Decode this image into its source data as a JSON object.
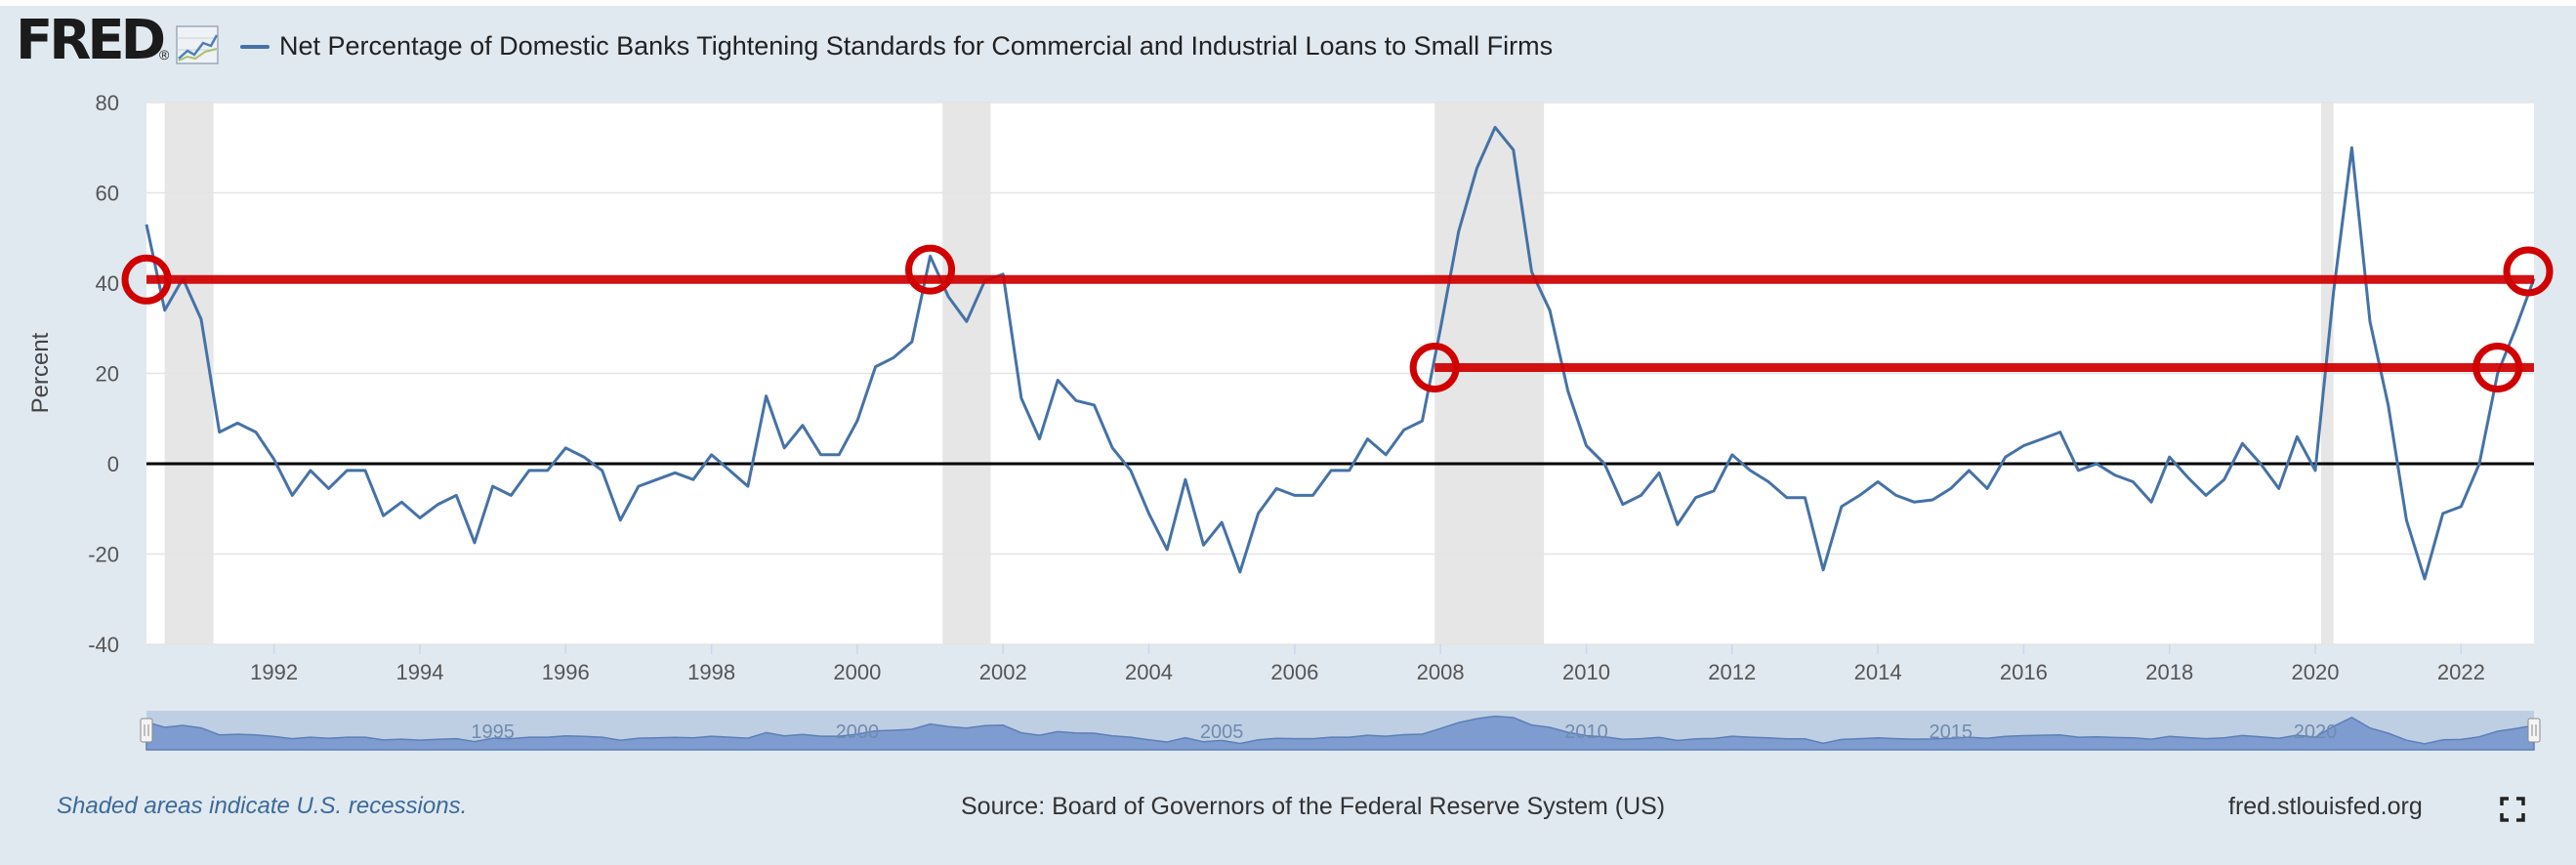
{
  "header": {
    "logo_text": "FRED",
    "logo_mark": "®",
    "logo_icon": "line-chart-icon"
  },
  "chart_data": {
    "type": "line",
    "title": "Net Percentage of Domestic Banks Tightening Standards for Commercial and Industrial Loans to Small Firms",
    "ylabel": "Percent",
    "xlabel": "",
    "ylim": [
      -40,
      80
    ],
    "xlim": [
      1990.25,
      2023.0
    ],
    "y_ticks": [
      80,
      60,
      40,
      20,
      0,
      -20,
      -40
    ],
    "x_ticks": [
      "1992",
      "1994",
      "1996",
      "1998",
      "2000",
      "2002",
      "2004",
      "2006",
      "2008",
      "2010",
      "2012",
      "2014",
      "2016",
      "2018",
      "2020",
      "2022"
    ],
    "grid": true,
    "recessions": [
      [
        1990.5,
        1991.17
      ],
      [
        2001.17,
        2001.83
      ],
      [
        2007.92,
        2009.42
      ],
      [
        2020.08,
        2020.25
      ]
    ],
    "reference_lines": [
      {
        "value": 40.8,
        "x_start": 1990.25,
        "x_end": 2023.0,
        "color": "#d00000"
      },
      {
        "value": 21.3,
        "x_start": 2007.92,
        "x_end": 2023.0,
        "color": "#d00000"
      }
    ],
    "highlight_circles": [
      {
        "x": 1990.25,
        "y": 40.8
      },
      {
        "x": 2001.0,
        "y": 43
      },
      {
        "x": 2007.92,
        "y": 21.3
      },
      {
        "x": 2022.5,
        "y": 21.3
      },
      {
        "x": 2022.92,
        "y": 42.6
      }
    ],
    "series": [
      {
        "name": "Net Percentage of Domestic Banks Tightening Standards for Commercial and Industrial Loans to Small Firms",
        "color": "#4572a7",
        "points": [
          [
            1990.25,
            53.0
          ],
          [
            1990.5,
            34.0
          ],
          [
            1990.75,
            41.0
          ],
          [
            1991.0,
            32.0
          ],
          [
            1991.25,
            7.0
          ],
          [
            1991.5,
            9.0
          ],
          [
            1991.75,
            7.0
          ],
          [
            1992.0,
            1.0
          ],
          [
            1992.25,
            -7.0
          ],
          [
            1992.5,
            -1.5
          ],
          [
            1992.75,
            -5.5
          ],
          [
            1993.0,
            -1.5
          ],
          [
            1993.25,
            -1.5
          ],
          [
            1993.5,
            -11.5
          ],
          [
            1993.75,
            -8.5
          ],
          [
            1994.0,
            -12.0
          ],
          [
            1994.25,
            -9.0
          ],
          [
            1994.5,
            -7.0
          ],
          [
            1994.75,
            -17.5
          ],
          [
            1995.0,
            -5.0
          ],
          [
            1995.25,
            -7.0
          ],
          [
            1995.5,
            -1.5
          ],
          [
            1995.75,
            -1.5
          ],
          [
            1996.0,
            3.5
          ],
          [
            1996.25,
            1.5
          ],
          [
            1996.5,
            -1.5
          ],
          [
            1996.75,
            -12.5
          ],
          [
            1997.0,
            -5.0
          ],
          [
            1997.25,
            -3.5
          ],
          [
            1997.5,
            -2.0
          ],
          [
            1997.75,
            -3.5
          ],
          [
            1998.0,
            2.0
          ],
          [
            1998.25,
            -1.5
          ],
          [
            1998.5,
            -5.0
          ],
          [
            1998.75,
            15.0
          ],
          [
            1999.0,
            3.5
          ],
          [
            1999.25,
            8.5
          ],
          [
            1999.5,
            2.0
          ],
          [
            1999.75,
            2.0
          ],
          [
            2000.0,
            9.5
          ],
          [
            2000.25,
            21.5
          ],
          [
            2000.5,
            23.5
          ],
          [
            2000.75,
            27.0
          ],
          [
            2001.0,
            46.0
          ],
          [
            2001.25,
            37.0
          ],
          [
            2001.5,
            31.5
          ],
          [
            2001.75,
            40.5
          ],
          [
            2002.0,
            42.0
          ],
          [
            2002.25,
            14.5
          ],
          [
            2002.5,
            5.5
          ],
          [
            2002.75,
            18.5
          ],
          [
            2003.0,
            14.0
          ],
          [
            2003.25,
            13.0
          ],
          [
            2003.5,
            3.5
          ],
          [
            2003.75,
            -1.5
          ],
          [
            2004.0,
            -11.0
          ],
          [
            2004.25,
            -19.0
          ],
          [
            2004.5,
            -3.5
          ],
          [
            2004.75,
            -18.0
          ],
          [
            2005.0,
            -13.0
          ],
          [
            2005.25,
            -24.0
          ],
          [
            2005.5,
            -11.0
          ],
          [
            2005.75,
            -5.5
          ],
          [
            2006.0,
            -7.0
          ],
          [
            2006.25,
            -7.0
          ],
          [
            2006.5,
            -1.5
          ],
          [
            2006.75,
            -1.5
          ],
          [
            2007.0,
            5.5
          ],
          [
            2007.25,
            2.0
          ],
          [
            2007.5,
            7.5
          ],
          [
            2007.75,
            9.5
          ],
          [
            2008.0,
            30.0
          ],
          [
            2008.25,
            51.5
          ],
          [
            2008.5,
            65.5
          ],
          [
            2008.75,
            74.5
          ],
          [
            2009.0,
            69.5
          ],
          [
            2009.25,
            42.5
          ],
          [
            2009.5,
            34.0
          ],
          [
            2009.75,
            16.0
          ],
          [
            2010.0,
            4.0
          ],
          [
            2010.25,
            0.0
          ],
          [
            2010.5,
            -9.0
          ],
          [
            2010.75,
            -7.0
          ],
          [
            2011.0,
            -2.0
          ],
          [
            2011.25,
            -13.5
          ],
          [
            2011.5,
            -7.5
          ],
          [
            2011.75,
            -6.0
          ],
          [
            2012.0,
            2.0
          ],
          [
            2012.25,
            -1.5
          ],
          [
            2012.5,
            -4.0
          ],
          [
            2012.75,
            -7.5
          ],
          [
            2013.0,
            -7.5
          ],
          [
            2013.25,
            -23.5
          ],
          [
            2013.5,
            -9.5
          ],
          [
            2013.75,
            -7.0
          ],
          [
            2014.0,
            -4.0
          ],
          [
            2014.25,
            -7.0
          ],
          [
            2014.5,
            -8.5
          ],
          [
            2014.75,
            -8.0
          ],
          [
            2015.0,
            -5.5
          ],
          [
            2015.25,
            -1.5
          ],
          [
            2015.5,
            -5.5
          ],
          [
            2015.75,
            1.5
          ],
          [
            2016.0,
            4.0
          ],
          [
            2016.25,
            5.5
          ],
          [
            2016.5,
            7.0
          ],
          [
            2016.75,
            -1.5
          ],
          [
            2017.0,
            0.0
          ],
          [
            2017.25,
            -2.5
          ],
          [
            2017.5,
            -4.0
          ],
          [
            2017.75,
            -8.5
          ],
          [
            2018.0,
            1.5
          ],
          [
            2018.25,
            -3.0
          ],
          [
            2018.5,
            -7.0
          ],
          [
            2018.75,
            -3.5
          ],
          [
            2019.0,
            4.5
          ],
          [
            2019.25,
            0.0
          ],
          [
            2019.5,
            -5.5
          ],
          [
            2019.75,
            6.0
          ],
          [
            2020.0,
            -1.5
          ],
          [
            2020.25,
            38.0
          ],
          [
            2020.5,
            70.0
          ],
          [
            2020.75,
            31.5
          ],
          [
            2021.0,
            13.0
          ],
          [
            2021.25,
            -12.5
          ],
          [
            2021.5,
            -25.5
          ],
          [
            2021.75,
            -11.0
          ],
          [
            2022.0,
            -9.5
          ],
          [
            2022.25,
            0.0
          ],
          [
            2022.5,
            20.0
          ],
          [
            2022.75,
            30.0
          ],
          [
            2023.0,
            41.0
          ]
        ]
      }
    ]
  },
  "navigator": {
    "labels": [
      "1995",
      "2000",
      "2005",
      "2010",
      "2015",
      "2020"
    ]
  },
  "footer": {
    "recession_note": "Shaded areas indicate U.S. recessions.",
    "source": "Source: Board of Governors of the Federal Reserve System (US)",
    "site": "fred.stlouisfed.org",
    "fullscreen_icon": "fullscreen-icon"
  },
  "colors": {
    "series": "#4572a7",
    "highlight": "#d00000",
    "recession": "#e6e6e6",
    "background": "#e1e9f0"
  }
}
